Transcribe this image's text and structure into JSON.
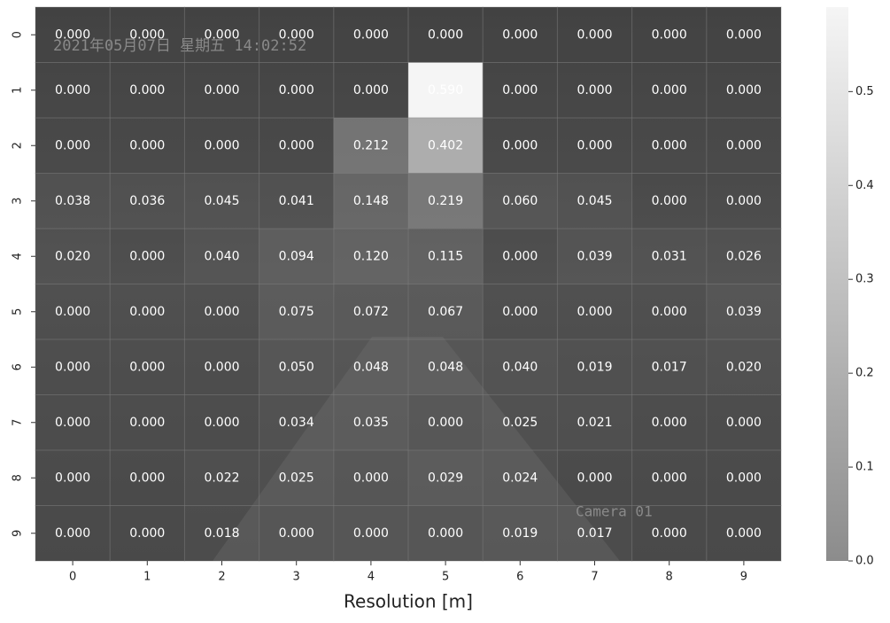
{
  "chart_data": {
    "type": "heatmap",
    "x_label": "Resolution [m]",
    "x_categories": [
      "0",
      "1",
      "2",
      "3",
      "4",
      "5",
      "6",
      "7",
      "8",
      "9"
    ],
    "y_categories": [
      "0",
      "1",
      "2",
      "3",
      "4",
      "5",
      "6",
      "7",
      "8",
      "9"
    ],
    "values": [
      [
        0,
        0,
        0,
        0,
        0,
        0,
        0,
        0,
        0,
        0
      ],
      [
        0,
        0,
        0,
        0,
        0,
        0.59,
        0,
        0,
        0,
        0
      ],
      [
        0,
        0,
        0,
        0,
        0.212,
        0.402,
        0,
        0,
        0,
        0
      ],
      [
        0.038,
        0.036,
        0.045,
        0.041,
        0.148,
        0.219,
        0.06,
        0.045,
        0,
        0
      ],
      [
        0.02,
        0,
        0.04,
        0.094,
        0.12,
        0.115,
        0,
        0.039,
        0.031,
        0.026
      ],
      [
        0,
        0,
        0,
        0.075,
        0.072,
        0.067,
        0,
        0,
        0,
        0.039
      ],
      [
        0,
        0,
        0,
        0.05,
        0.048,
        0.048,
        0.04,
        0.019,
        0.017,
        0.02
      ],
      [
        0,
        0,
        0,
        0.034,
        0.035,
        0,
        0.025,
        0.021,
        0,
        0
      ],
      [
        0,
        0,
        0.022,
        0.025,
        0,
        0.029,
        0.024,
        0,
        0,
        0
      ],
      [
        0,
        0,
        0.018,
        0,
        0,
        0,
        0.019,
        0.017,
        0,
        0
      ]
    ],
    "value_labels": [
      [
        "0.000",
        "0.000",
        "0.000",
        "0.000",
        "0.000",
        "0.000",
        "0.000",
        "0.000",
        "0.000",
        "0.000"
      ],
      [
        "0.000",
        "0.000",
        "0.000",
        "0.000",
        "0.000",
        "0.590",
        "0.000",
        "0.000",
        "0.000",
        "0.000"
      ],
      [
        "0.000",
        "0.000",
        "0.000",
        "0.000",
        "0.212",
        "0.402",
        "0.000",
        "0.000",
        "0.000",
        "0.000"
      ],
      [
        "0.038",
        "0.036",
        "0.045",
        "0.041",
        "0.148",
        "0.219",
        "0.060",
        "0.045",
        "0.000",
        "0.000"
      ],
      [
        "0.020",
        "0.000",
        "0.040",
        "0.094",
        "0.120",
        "0.115",
        "0.000",
        "0.039",
        "0.031",
        "0.026"
      ],
      [
        "0.000",
        "0.000",
        "0.000",
        "0.075",
        "0.072",
        "0.067",
        "0.000",
        "0.000",
        "0.000",
        "0.039"
      ],
      [
        "0.000",
        "0.000",
        "0.000",
        "0.050",
        "0.048",
        "0.048",
        "0.040",
        "0.019",
        "0.017",
        "0.020"
      ],
      [
        "0.000",
        "0.000",
        "0.000",
        "0.034",
        "0.035",
        "0.000",
        "0.025",
        "0.021",
        "0.000",
        "0.000"
      ],
      [
        "0.000",
        "0.000",
        "0.022",
        "0.025",
        "0.000",
        "0.029",
        "0.024",
        "0.000",
        "0.000",
        "0.000"
      ],
      [
        "0.000",
        "0.000",
        "0.018",
        "0.000",
        "0.000",
        "0.000",
        "0.019",
        "0.017",
        "0.000",
        "0.000"
      ]
    ],
    "colormap": [
      "#8c8c8c",
      "#f5f5f5"
    ],
    "vlim": [
      0,
      0.59
    ],
    "colorbar_ticks": [
      {
        "value": 0,
        "label": "0.0"
      },
      0.1,
      0.2,
      0.3,
      0.4,
      0.5
    ],
    "overlay_texts": [
      "2021年05月07日 星期五 14:02:52",
      "Camera 01"
    ]
  }
}
